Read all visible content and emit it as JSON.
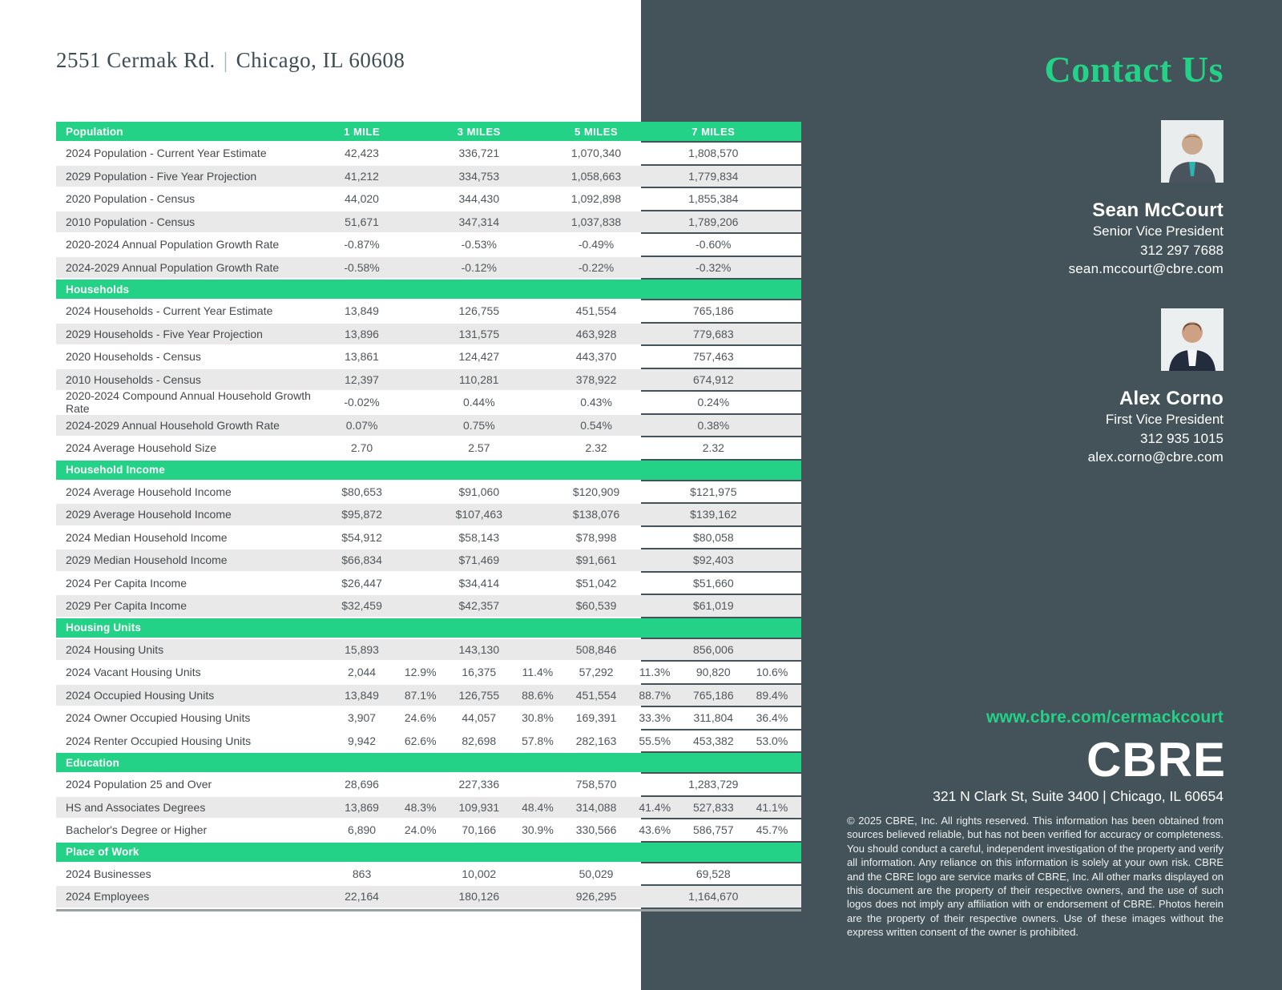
{
  "page": {
    "address_street": "2551 Cermak Rd.",
    "address_separator": "|",
    "address_city": "Chicago, IL 60608"
  },
  "colors": {
    "accent_green": "#24d287",
    "panel_dark": "#445359",
    "shaded_row": "#e9e9e9"
  },
  "table": {
    "columns": [
      "1 MILE",
      "3 MILES",
      "5 MILES",
      "7 MILES"
    ],
    "sections": [
      {
        "name": "Population",
        "rows": [
          {
            "label": "2024 Population - Current Year Estimate",
            "cells": [
              "42,423",
              "",
              "336,721",
              "",
              "1,070,340",
              "",
              "1,808,570",
              ""
            ],
            "shaded": false
          },
          {
            "label": "2029 Population -  Five Year Projection",
            "cells": [
              "41,212",
              "",
              "334,753",
              "",
              "1,058,663",
              "",
              "1,779,834",
              ""
            ],
            "shaded": true
          },
          {
            "label": "2020 Population - Census",
            "cells": [
              "44,020",
              "",
              "344,430",
              "",
              "1,092,898",
              "",
              "1,855,384",
              ""
            ],
            "shaded": false
          },
          {
            "label": "2010 Population - Census",
            "cells": [
              "51,671",
              "",
              "347,314",
              "",
              "1,037,838",
              "",
              "1,789,206",
              ""
            ],
            "shaded": true
          },
          {
            "label": "2020-2024 Annual Population Growth Rate",
            "cells": [
              "-0.87%",
              "",
              "-0.53%",
              "",
              "-0.49%",
              "",
              "-0.60%",
              ""
            ],
            "shaded": false
          },
          {
            "label": "2024-2029 Annual Population Growth Rate",
            "cells": [
              "-0.58%",
              "",
              "-0.12%",
              "",
              "-0.22%",
              "",
              "-0.32%",
              ""
            ],
            "shaded": true
          }
        ]
      },
      {
        "name": "Households",
        "rows": [
          {
            "label": "2024 Households - Current Year Estimate",
            "cells": [
              "13,849",
              "",
              "126,755",
              "",
              "451,554",
              "",
              "765,186",
              ""
            ],
            "shaded": false
          },
          {
            "label": "2029 Households -  Five Year Projection",
            "cells": [
              "13,896",
              "",
              "131,575",
              "",
              "463,928",
              "",
              "779,683",
              ""
            ],
            "shaded": true
          },
          {
            "label": "2020 Households - Census",
            "cells": [
              "13,861",
              "",
              "124,427",
              "",
              "443,370",
              "",
              "757,463",
              ""
            ],
            "shaded": false
          },
          {
            "label": "2010 Households - Census",
            "cells": [
              "12,397",
              "",
              "110,281",
              "",
              "378,922",
              "",
              "674,912",
              ""
            ],
            "shaded": true
          },
          {
            "label": "2020-2024 Compound Annual Household Growth Rate",
            "cells": [
              "-0.02%",
              "",
              "0.44%",
              "",
              "0.43%",
              "",
              "0.24%",
              ""
            ],
            "shaded": false
          },
          {
            "label": "2024-2029 Annual Household Growth Rate",
            "cells": [
              "0.07%",
              "",
              "0.75%",
              "",
              "0.54%",
              "",
              "0.38%",
              ""
            ],
            "shaded": true
          },
          {
            "label": "2024 Average Household Size",
            "cells": [
              "2.70",
              "",
              "2.57",
              "",
              "2.32",
              "",
              "2.32",
              ""
            ],
            "shaded": false
          }
        ]
      },
      {
        "name": "Household Income",
        "rows": [
          {
            "label": "2024 Average Household Income",
            "cells": [
              "$80,653",
              "",
              "$91,060",
              "",
              "$120,909",
              "",
              "$121,975",
              ""
            ],
            "shaded": false
          },
          {
            "label": "2029 Average Household Income",
            "cells": [
              "$95,872",
              "",
              "$107,463",
              "",
              "$138,076",
              "",
              "$139,162",
              ""
            ],
            "shaded": true
          },
          {
            "label": "2024 Median Household Income",
            "cells": [
              "$54,912",
              "",
              "$58,143",
              "",
              "$78,998",
              "",
              "$80,058",
              ""
            ],
            "shaded": false
          },
          {
            "label": "2029 Median Household Income",
            "cells": [
              "$66,834",
              "",
              "$71,469",
              "",
              "$91,661",
              "",
              "$92,403",
              ""
            ],
            "shaded": true
          },
          {
            "label": "2024 Per Capita Income",
            "cells": [
              "$26,447",
              "",
              "$34,414",
              "",
              "$51,042",
              "",
              "$51,660",
              ""
            ],
            "shaded": false
          },
          {
            "label": "2029 Per Capita Income",
            "cells": [
              "$32,459",
              "",
              "$42,357",
              "",
              "$60,539",
              "",
              "$61,019",
              ""
            ],
            "shaded": true
          }
        ]
      },
      {
        "name": "Housing Units",
        "rows": [
          {
            "label": "2024 Housing Units",
            "cells": [
              "15,893",
              "",
              "143,130",
              "",
              "508,846",
              "",
              "856,006",
              ""
            ],
            "shaded": true
          },
          {
            "label": "2024 Vacant Housing Units",
            "cells": [
              "2,044",
              "12.9%",
              "16,375",
              "11.4%",
              "57,292",
              "11.3%",
              "90,820",
              "10.6%"
            ],
            "shaded": false
          },
          {
            "label": "2024 Occupied Housing Units",
            "cells": [
              "13,849",
              "87.1%",
              "126,755",
              "88.6%",
              "451,554",
              "88.7%",
              "765,186",
              "89.4%"
            ],
            "shaded": true
          },
          {
            "label": "2024 Owner Occupied Housing Units",
            "cells": [
              "3,907",
              "24.6%",
              "44,057",
              "30.8%",
              "169,391",
              "33.3%",
              "311,804",
              "36.4%"
            ],
            "shaded": false
          },
          {
            "label": "2024 Renter Occupied Housing Units",
            "cells": [
              "9,942",
              "62.6%",
              "82,698",
              "57.8%",
              "282,163",
              "55.5%",
              "453,382",
              "53.0%"
            ],
            "shaded": false
          }
        ]
      },
      {
        "name": "Education",
        "rows": [
          {
            "label": "2024 Population 25 and Over",
            "cells": [
              "28,696",
              "",
              "227,336",
              "",
              "758,570",
              "",
              "1,283,729",
              ""
            ],
            "shaded": false
          },
          {
            "label": "HS and Associates Degrees",
            "cells": [
              "13,869",
              "48.3%",
              "109,931",
              "48.4%",
              "314,088",
              "41.4%",
              "527,833",
              "41.1%"
            ],
            "shaded": true
          },
          {
            "label": "Bachelor's Degree or Higher",
            "cells": [
              "6,890",
              "24.0%",
              "70,166",
              "30.9%",
              "330,566",
              "43.6%",
              "586,757",
              "45.7%"
            ],
            "shaded": false
          }
        ]
      },
      {
        "name": "Place of Work",
        "rows": [
          {
            "label": "2024 Businesses",
            "cells": [
              "863",
              "",
              "10,002",
              "",
              "50,029",
              "",
              "69,528",
              ""
            ],
            "shaded": false
          },
          {
            "label": "2024 Employees",
            "cells": [
              "22,164",
              "",
              "180,126",
              "",
              "926,295",
              "",
              "1,164,670",
              ""
            ],
            "shaded": true
          }
        ]
      }
    ]
  },
  "sidebar": {
    "heading": "Contact Us",
    "contacts": [
      {
        "name": "Sean McCourt",
        "title": "Senior Vice President",
        "phone": "312 297 7688",
        "email": "sean.mccourt@cbre.com"
      },
      {
        "name": "Alex Corno",
        "title": "First Vice President",
        "phone": "312 935 1015",
        "email": "alex.corno@cbre.com"
      }
    ],
    "website": "www.cbre.com/cermackcourt",
    "logo": "CBRE",
    "office_address": "321 N Clark St, Suite 3400 | Chicago, IL 60654",
    "disclaimer": "© 2025 CBRE, Inc. All rights reserved. This information has been obtained from sources believed reliable, but has not been verified for accuracy or completeness. You should conduct a careful, independent investigation of the property and verify all information. Any reliance on this information is solely at your own risk. CBRE and the CBRE logo are service marks of CBRE, Inc. All other marks displayed on this document are the property of their respective owners, and the use of such logos does not imply any affiliation with or endorsement of CBRE. Photos herein are the property of their respective owners. Use of these images without the express written consent of the owner is prohibited."
  }
}
